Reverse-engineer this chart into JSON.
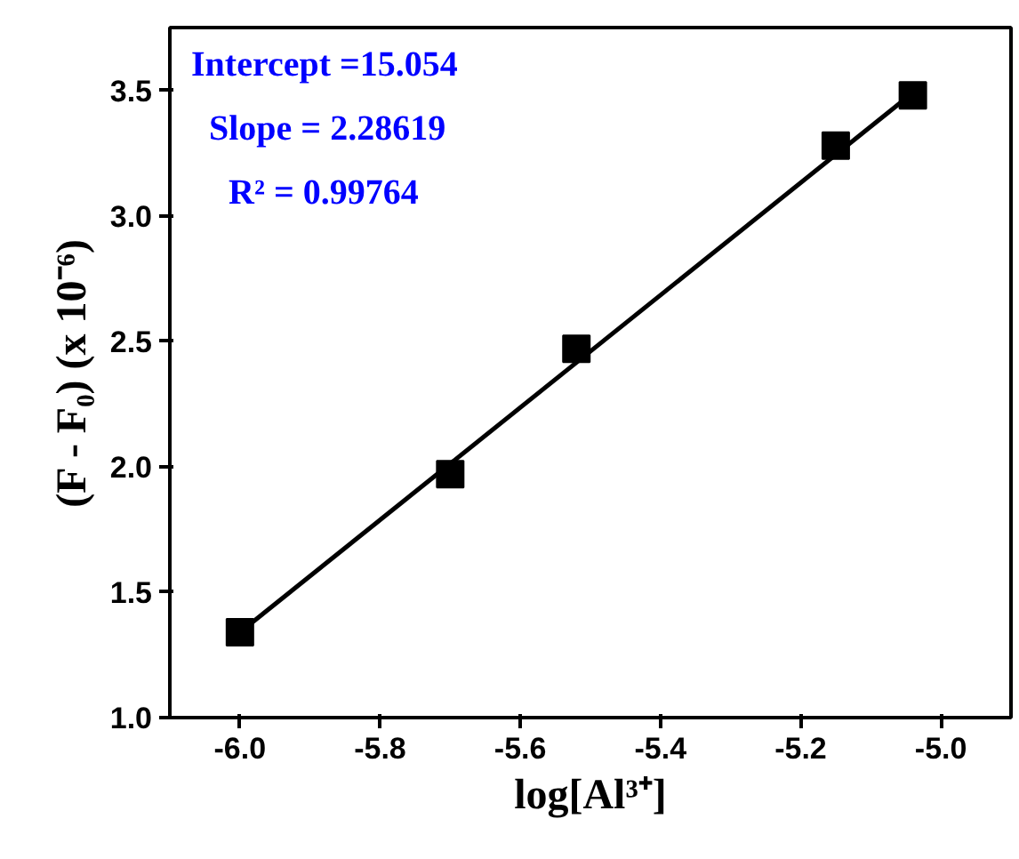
{
  "chart_data": {
    "type": "scatter",
    "xlabel": "log[Al³⁺]",
    "ylabel": "(F - F₀) (x 10⁻⁶)",
    "annotations": [
      "Intercept =15.054",
      "Slope = 2.28619",
      "R² = 0.99764"
    ],
    "series": [
      {
        "color": "#000000",
        "marker": "square",
        "x": [
          -6.0,
          -5.7,
          -5.52,
          -5.15,
          -5.04
        ],
        "values": [
          1.34,
          1.97,
          2.47,
          3.28,
          3.48
        ]
      },
      {
        "type": "line",
        "color": "#000000",
        "line_style": "solid",
        "x": [
          -6.0,
          -5.04
        ],
        "values": [
          1.34,
          3.49
        ]
      }
    ],
    "xlim": [
      -6.1,
      -4.9
    ],
    "ylim": [
      1.0,
      3.75
    ],
    "xticks": [
      {
        "value": -6.0,
        "label": "-6.0"
      },
      {
        "value": -5.8,
        "label": "-5.8"
      },
      {
        "value": -5.6,
        "label": "-5.6"
      },
      {
        "value": -5.4,
        "label": "-5.4"
      },
      {
        "value": -5.2,
        "label": "-5.2"
      },
      {
        "value": -5.0,
        "label": "-5.0"
      }
    ],
    "yticks": [
      {
        "value": 1.0,
        "label": "1.0"
      },
      {
        "value": 1.5,
        "label": "1.5"
      },
      {
        "value": 2.0,
        "label": "2.0"
      },
      {
        "value": 2.5,
        "label": "2.5"
      },
      {
        "value": 3.0,
        "label": "3.0"
      },
      {
        "value": 3.5,
        "label": "3.5"
      }
    ],
    "grid": false
  }
}
